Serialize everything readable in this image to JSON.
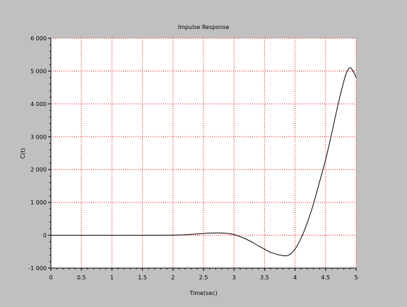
{
  "chart_data": {
    "type": "line",
    "title": "Impulse Response",
    "xlabel": "Time(sec)",
    "ylabel": "C(t)",
    "xlim": [
      0,
      5
    ],
    "ylim": [
      -1000,
      6000
    ],
    "xticks": [
      0,
      0.5,
      1,
      1.5,
      2,
      2.5,
      3,
      3.5,
      4,
      4.5,
      5
    ],
    "xtick_labels": [
      "0",
      "0.5",
      "1",
      "1.5",
      "2",
      "2.5",
      "3",
      "3.5",
      "4",
      "4.5",
      "5"
    ],
    "yticks": [
      -1000,
      0,
      1000,
      2000,
      3000,
      4000,
      5000,
      6000
    ],
    "ytick_labels": [
      "-1 000",
      "0",
      "1 000",
      "2 000",
      "3 000",
      "4 000",
      "5 000",
      "6 000"
    ],
    "grid": true,
    "colors": {
      "background": "#c0c0c0",
      "plot_area": "#ffffff",
      "grid": "#ff0000",
      "line": "#000000"
    },
    "series": [
      {
        "x": [
          0,
          0.5,
          1,
          1.5,
          2,
          2.2,
          2.4,
          2.6,
          2.8,
          3,
          3.2,
          3.4,
          3.6,
          3.8,
          3.9,
          4,
          4.1,
          4.2,
          4.3,
          4.4,
          4.5,
          4.6,
          4.7,
          4.8,
          4.85,
          4.9,
          4.95,
          5
        ],
        "y": [
          0,
          0,
          0,
          0,
          5,
          15,
          40,
          65,
          70,
          20,
          -120,
          -320,
          -520,
          -620,
          -600,
          -420,
          -80,
          380,
          950,
          1620,
          2300,
          3100,
          3950,
          4700,
          4980,
          5100,
          5000,
          4800
        ]
      }
    ]
  }
}
